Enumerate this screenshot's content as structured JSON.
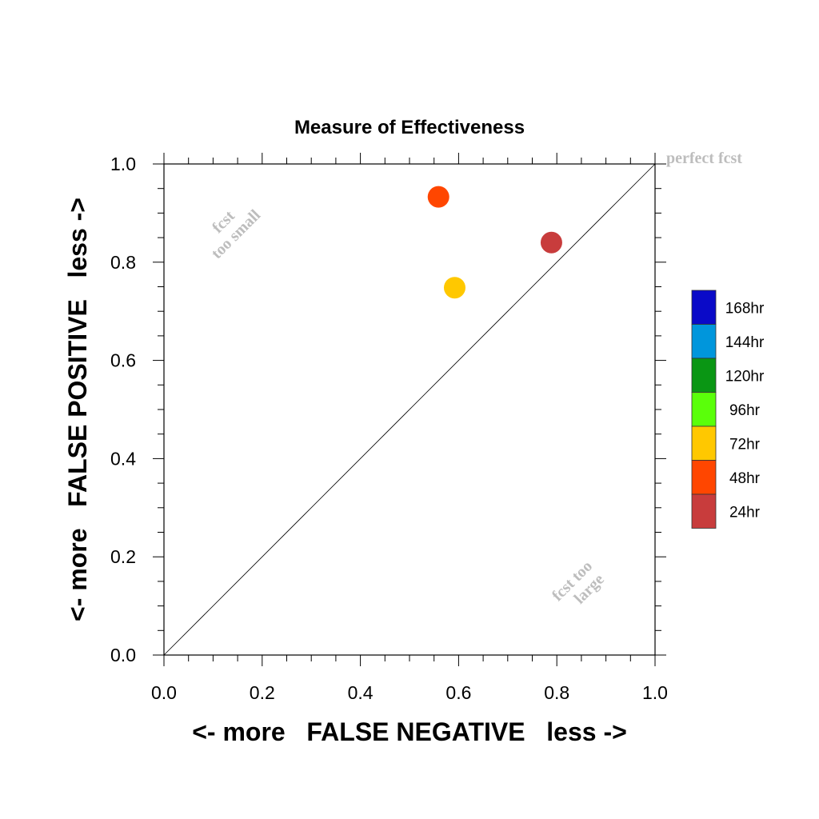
{
  "chart_data": {
    "type": "scatter",
    "title": "Measure of Effectiveness",
    "xlabel": "<- more   FALSE NEGATIVE   less ->",
    "ylabel": "<- more   FALSE POSITIVE   less ->",
    "xlim": [
      0.0,
      1.0
    ],
    "ylim": [
      0.0,
      1.0
    ],
    "xticks": [
      "0.0",
      "0.2",
      "0.4",
      "0.6",
      "0.8",
      "1.0"
    ],
    "yticks": [
      "0.0",
      "0.2",
      "0.4",
      "0.6",
      "0.8",
      "1.0"
    ],
    "grid": false,
    "diagonal_line": true,
    "annotations": {
      "top_right": "perfect fcst",
      "upper_left_line1": "fcst",
      "upper_left_line2": "too small",
      "lower_right_line1": "fcst too",
      "lower_right_line2": "large"
    },
    "legend": {
      "placement": "right",
      "entries": [
        {
          "label": "168hr",
          "color": "#0a0ac8"
        },
        {
          "label": "144hr",
          "color": "#0096dc"
        },
        {
          "label": "120hr",
          "color": "#0a9614"
        },
        {
          "label": "96hr",
          "color": "#5aff0a"
        },
        {
          "label": "72hr",
          "color": "#ffc800"
        },
        {
          "label": "48hr",
          "color": "#ff4600"
        },
        {
          "label": "24hr",
          "color": "#c83c3c"
        }
      ]
    },
    "points": [
      {
        "label": "24hr",
        "x": 0.789,
        "y": 0.84,
        "color": "#c83c3c"
      },
      {
        "label": "48hr",
        "x": 0.559,
        "y": 0.933,
        "color": "#ff4600"
      },
      {
        "label": "72hr",
        "x": 0.592,
        "y": 0.748,
        "color": "#ffc800"
      }
    ]
  }
}
